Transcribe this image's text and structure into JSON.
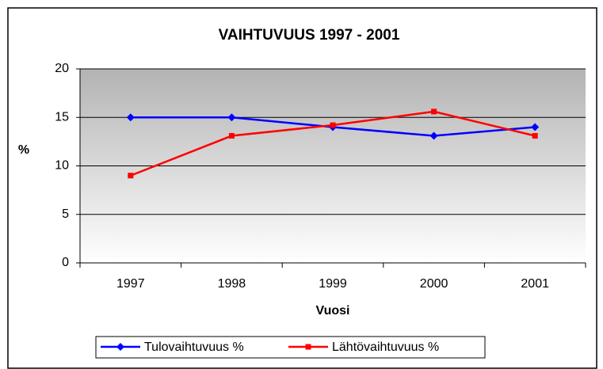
{
  "chart_data": {
    "type": "line",
    "title": "VAIHTUVUUS 1997 - 2001",
    "x_label": "Vuosi",
    "y_label": "%",
    "categories": [
      "1997",
      "1998",
      "1999",
      "2000",
      "2001"
    ],
    "series": [
      {
        "name": "Tulovaihtuvuus %",
        "color": "#0000ff",
        "values": [
          15,
          15,
          14,
          13.1,
          14
        ]
      },
      {
        "name": "Lähtövaihtuvuus %",
        "color": "#ff0000",
        "values": [
          9,
          13.1,
          14.2,
          15.6,
          13.1
        ]
      }
    ],
    "ylim": [
      0,
      20
    ],
    "yticks": [
      0,
      5,
      10,
      15,
      20
    ],
    "grid": true,
    "legend": "bottom"
  }
}
